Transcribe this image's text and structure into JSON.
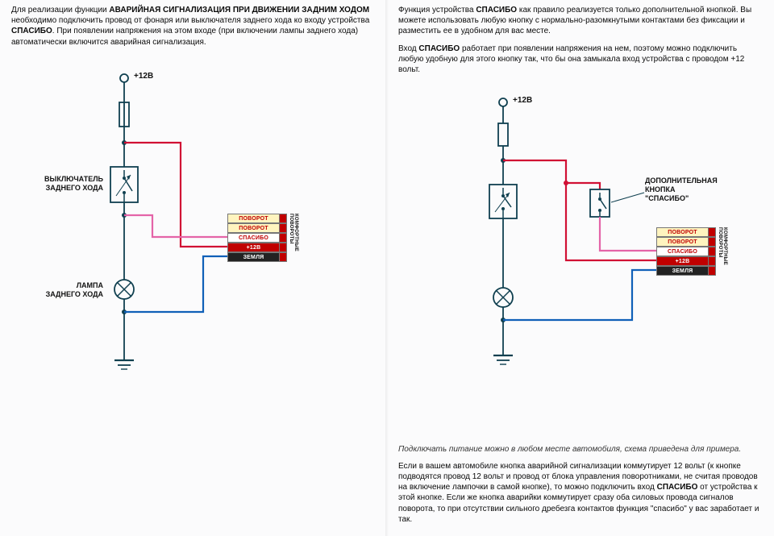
{
  "colors": {
    "wire_black": "#104050",
    "wire_red": "#d11034",
    "wire_pink": "#e464a8",
    "wire_blue": "#1060b8",
    "module_border": "#777777",
    "module_turn_bg": "#fff4bf",
    "module_turn_fg": "#c00000",
    "module_spasibo_bg": "#ffffff",
    "module_spasibo_fg": "#c00000",
    "module_12v_bg": "#c00000",
    "module_12v_fg": "#ffffff",
    "module_gnd_bg": "#222222",
    "module_gnd_fg": "#ffffff",
    "module_side_bg": "#c00000",
    "module_side_fg": "#ffffff"
  },
  "left": {
    "para1_html": "Для реализации функции <b>АВАРИЙНАЯ СИГНАЛИЗАЦИЯ ПРИ ДВИЖЕНИИ ЗАДНИМ ХОДОМ</b> необходимо подключить провод от фонаря или выключателя заднего хода ко входу устройства <b>СПАСИБО</b>. При появлении напряжения на этом входе (при включении лампы заднего хода) автоматически включится аварийная сигнализация.",
    "v12_label": "+12В",
    "label_switch": "ВЫКЛЮЧАТЕЛЬ\nЗАДНЕГО ХОДА",
    "label_lamp": "ЛАМПА\nЗАДНЕГО ХОДА",
    "module": {
      "rows": [
        {
          "text": "ПОВОРОТ"
        },
        {
          "text": "ПОВОРОТ"
        },
        {
          "text": "СПАСИБО"
        },
        {
          "text": "+12B"
        },
        {
          "text": "ЗЕМЛЯ"
        }
      ],
      "side_label": "КОМФОРТНЫЕ ПОВОРОТЫ"
    }
  },
  "right": {
    "para1_html": "Функция устройства <b>СПАСИБО</b> как правило реализуется только дополнительной кнопкой. Вы можете использовать любую кнопку с нормально-разомкнутыми контактами без фиксации и разместить ее в удобном для вас месте.",
    "para2_html": "Вход <b>СПАСИБО</b> работает при появлении напряжения на нем, поэтому можно подключить любую удобную для этого кнопку так, что бы она замыкала вход устройства с проводом +12 вольт.",
    "v12_label": "+12В",
    "label_button": "ДОПОЛНИТЕЛЬНАЯ\nКНОПКА\n\"СПАСИБО\"",
    "module": {
      "rows": [
        {
          "text": "ПОВОРОТ"
        },
        {
          "text": "ПОВОРОТ"
        },
        {
          "text": "СПАСИБО"
        },
        {
          "text": "+12B"
        },
        {
          "text": "ЗЕМЛЯ"
        }
      ],
      "side_label": "КОМФОРТНЫЕ ПОВОРОТЫ"
    },
    "note": "Подключать питание можно в любом месте автомобиля, схема приведена для примера.",
    "para3_html": "Если в вашем автомобиле кнопка аварийной сигнализации коммутирует 12 вольт (к кнопке подводятся провод 12 вольт и провод от блока управления поворотниками, не считая проводов на включение лампочки в самой кнопке), то можно подключить вход <b>СПАСИБО</b> от устройства к этой кнопке. Если же кнопка аварийки коммутирует сразу оба силовых провода сигналов поворота, то при отсутствии сильного дребезга контактов функция \"спасибо\" у вас заработает и так."
  },
  "diagram_style": {
    "stroke_width_thin": 1.5,
    "stroke_width_thick": 2.2,
    "node_radius": 3
  }
}
